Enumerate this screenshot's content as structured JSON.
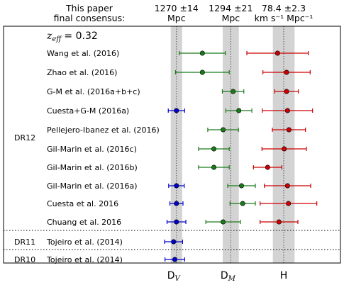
{
  "chart_data": {
    "type": "scatter",
    "subtype": "forest-plot-errorbars",
    "header": {
      "left_line1": "This paper",
      "left_line2": "final consensus:"
    },
    "zeff_label": "z",
    "zeff_sub": "eff",
    "zeff_value": "= 0.32",
    "colors": {
      "DV": "#0000cc",
      "DM": "#1a7a1a",
      "H": "#cc0000",
      "band": "#d3d3d3"
    },
    "panels": [
      {
        "key": "DV",
        "axis_label": "D",
        "axis_sub": "V",
        "consensus_line1": "1270 ±14",
        "consensus_line2": "Mpc",
        "consensus": {
          "value": 1270,
          "err": 14
        },
        "xlim": [
          1130,
          1390
        ]
      },
      {
        "key": "DM",
        "axis_label": "D",
        "axis_sub": "M",
        "consensus_line1": "1294 ±21",
        "consensus_line2": "Mpc",
        "consensus": {
          "value": 1294,
          "err": 21
        },
        "xlim": [
          1090,
          1480
        ]
      },
      {
        "key": "H",
        "axis_label": "H",
        "axis_sub": "",
        "consensus_line1": "78.4 ±2.3",
        "consensus_line2": "km s⁻¹ Mpc⁻¹",
        "consensus": {
          "value": 78.4,
          "err": 2.3
        },
        "xlim": [
          67,
          91
        ]
      }
    ],
    "groups": [
      {
        "label": "DR12",
        "row_start": 0,
        "row_end": 9
      },
      {
        "label": "DR11",
        "row_start": 10,
        "row_end": 10
      },
      {
        "label": "DR10",
        "row_start": 11,
        "row_end": 11
      }
    ],
    "rows": [
      {
        "label": "Wang et al. (2016)",
        "DV": null,
        "DM": {
          "value": 1220,
          "err": 60
        },
        "H": {
          "value": 77.1,
          "err": 6.5
        }
      },
      {
        "label": "Zhao et al. (2016)",
        "DV": null,
        "DM": {
          "value": 1220,
          "err": 70
        },
        "H": {
          "value": 79.0,
          "err": 5.0
        }
      },
      {
        "label": "G-M et al. (2016a+b+c)",
        "DV": null,
        "DM": {
          "value": 1300,
          "err": 28
        },
        "H": {
          "value": 79.0,
          "err": 2.5
        }
      },
      {
        "label": "Cuesta+G-M (2016a)",
        "DV": {
          "value": 1270,
          "err": 20
        },
        "DM": {
          "value": 1315,
          "err": 34
        },
        "H": {
          "value": 79.2,
          "err": 5.3
        }
      },
      {
        "label": "Pellejero-Ibanez et al. (2016)",
        "DV": null,
        "DM": {
          "value": 1274,
          "err": 40
        },
        "H": {
          "value": 79.5,
          "err": 3.5
        }
      },
      {
        "label": "Gil-Marin et al. (2016c)",
        "DV": null,
        "DM": {
          "value": 1250,
          "err": 40
        },
        "H": {
          "value": 78.5,
          "err": 4.7
        }
      },
      {
        "label": "Gil-Marin et al. (2016b)",
        "DV": null,
        "DM": {
          "value": 1250,
          "err": 40
        },
        "H": {
          "value": 75.0,
          "err": 3.0
        }
      },
      {
        "label": "Gil-Marin et al. (2016a)",
        "DV": {
          "value": 1270,
          "err": 19
        },
        "DM": {
          "value": 1322,
          "err": 36
        },
        "H": {
          "value": 79.2,
          "err": 4.9
        }
      },
      {
        "label": "Cuesta et al. 2016",
        "DV": {
          "value": 1270,
          "err": 16
        },
        "DM": {
          "value": 1325,
          "err": 33
        },
        "H": {
          "value": 79.4,
          "err": 6.0
        }
      },
      {
        "label": "Chuang et al. 2016",
        "DV": {
          "value": 1270,
          "err": 23
        },
        "DM": {
          "value": 1274,
          "err": 45
        },
        "H": {
          "value": 77.4,
          "err": 4.0
        }
      },
      {
        "label": "Tojeiro et al. (2014)",
        "DV": {
          "value": 1263,
          "err": 22
        },
        "DM": null,
        "H": null
      },
      {
        "label": "Tojeiro et al. (2014)",
        "DV": {
          "value": 1266,
          "err": 24
        },
        "DM": null,
        "H": null
      }
    ]
  }
}
